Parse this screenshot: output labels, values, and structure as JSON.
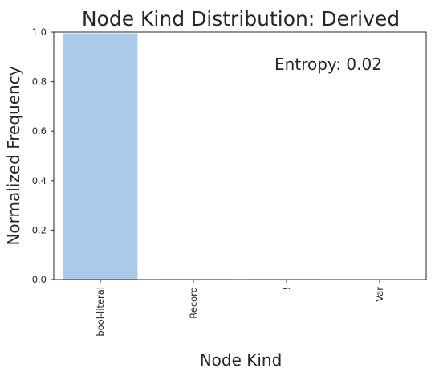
{
  "chart_data": {
    "type": "bar",
    "title": "Node Kind Distribution: Derived",
    "xlabel": "Node Kind",
    "ylabel": "Normalized Frequency",
    "categories": [
      "bool-literal",
      "Record",
      "!",
      "Var"
    ],
    "values": [
      0.995,
      0.0017,
      0.0017,
      0.0016
    ],
    "ylim": [
      0,
      1.0
    ],
    "yticks": [
      "0.0",
      "0.2",
      "0.4",
      "0.6",
      "0.8",
      "1.0"
    ],
    "annotation": "Entropy: 0.02",
    "bar_color": "#abc9ea",
    "grid": false,
    "legend": "none"
  }
}
